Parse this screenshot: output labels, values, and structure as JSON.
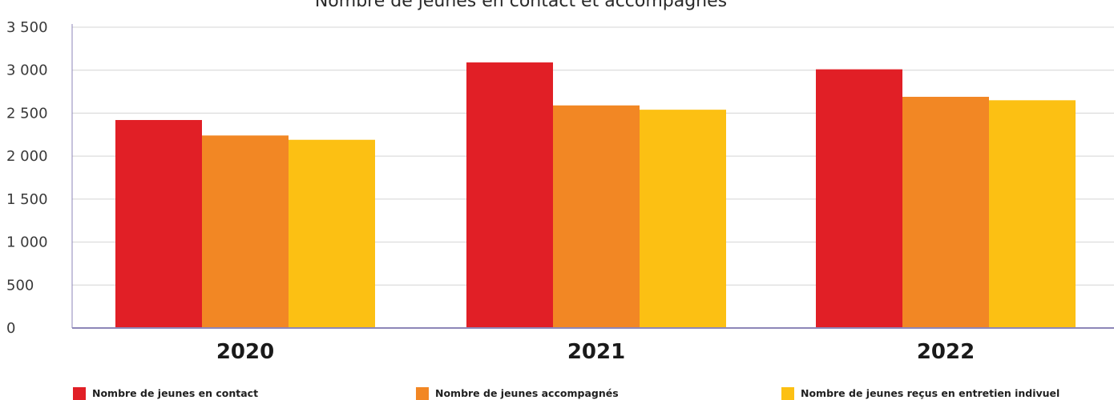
{
  "chart_data": {
    "type": "bar",
    "title": "Nombre de jeunes en contact et accompagnés",
    "categories": [
      "2020",
      "2021",
      "2022"
    ],
    "series": [
      {
        "name": "Nombre de jeunes en contact",
        "values": [
          2420,
          3090,
          3010
        ],
        "color": "#e11f26"
      },
      {
        "name": "Nombre de jeunes accompagnés",
        "values": [
          2240,
          2590,
          2690
        ],
        "color": "#f28724"
      },
      {
        "name": "Nombre de jeunes reçus en entretien indivuel",
        "values": [
          2190,
          2540,
          2650
        ],
        "color": "#fcc013"
      }
    ],
    "yticks": [
      "0",
      "500",
      "1 000",
      "1 500",
      "2 000",
      "2 500",
      "3 000",
      "3 500"
    ],
    "ylim": [
      0,
      3500
    ],
    "ytick_step": 500,
    "grid": true,
    "legend_position": "bottom",
    "axis_color": "#8d86b8",
    "grid_color": "#d4d4d4"
  }
}
